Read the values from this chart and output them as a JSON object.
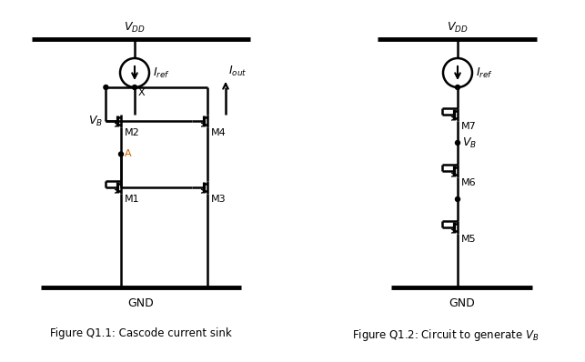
{
  "bg_color": "#ffffff",
  "line_color": "#000000",
  "fig_width": 6.43,
  "fig_height": 3.98,
  "lw": 1.8,
  "lw_thick": 3.5,
  "fig1_caption": "Figure Q1.1: Cascode current sink",
  "fig2_caption": "Figure Q1.2: Circuit to generate $V_B$",
  "vdd_label": "$V_{DD}$",
  "gnd_label": "GND",
  "iref_label": "$I_{ref}$",
  "iout_label": "$I_{out}$",
  "vb_label": "$V_B$",
  "x_label": "X",
  "a_label": "A",
  "m1_label": "M1",
  "m2_label": "M2",
  "m3_label": "M3",
  "m4_label": "M4",
  "m5_label": "M5",
  "m6_label": "M6",
  "m7_label": "M7"
}
